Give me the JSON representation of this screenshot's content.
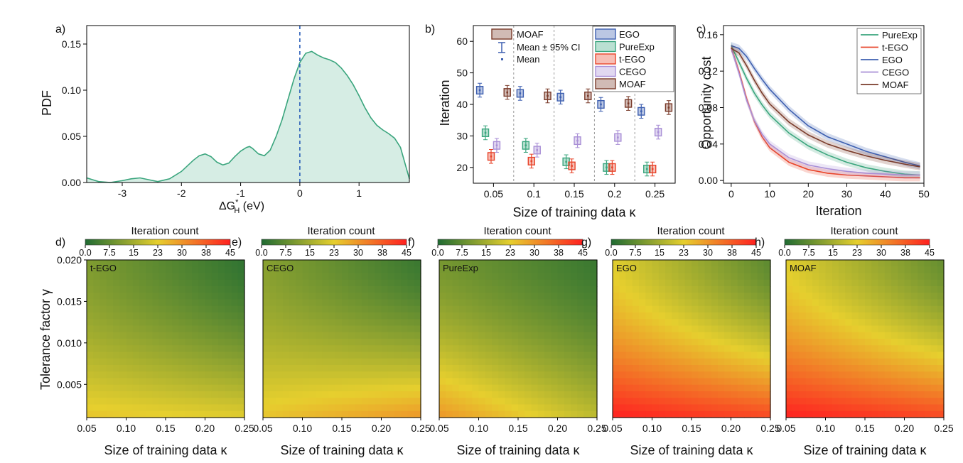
{
  "panels": {
    "a": {
      "letter": "a)",
      "ylabel": "PDF",
      "xlabel_main": "ΔG",
      "xlabel_sup": "*",
      "xlabel_sub": "H",
      "xlabel_unit": " (eV)"
    },
    "b": {
      "letter": "b)",
      "ylabel": "Iteration",
      "xlabel": "Size of training data κ",
      "legend_left": {
        "box": "MOAF",
        "ci": "Mean ± 95% CI",
        "mean": "Mean"
      }
    },
    "c": {
      "letter": "c)",
      "ylabel": "Opportunity cost",
      "xlabel": "Iteration"
    },
    "heat_letters": [
      "d)",
      "e)",
      "f)",
      "g)",
      "h)"
    ],
    "heat_methods": [
      "t-EGO",
      "CEGO",
      "PureExp",
      "EGO",
      "MOAF"
    ],
    "colorbar_title": "Iteration count",
    "colorbar_ticks": [
      "0.0",
      "7.5",
      "15",
      "23",
      "30",
      "38",
      "45"
    ],
    "heat_xlabel": "Size of training data κ",
    "heat_ylabel": "Tolerance factor γ",
    "heat_xticks": [
      "0.05",
      "0.10",
      "0.15",
      "0.20",
      "0.25"
    ],
    "heat_yticks": [
      "0.005",
      "0.010",
      "0.015",
      "0.020"
    ]
  },
  "colors": {
    "pdf_line": "#3aa57d",
    "pdf_fill": "#d6ede4",
    "vline": "#2c5fb8",
    "EGO": "#3d5fb0",
    "PureExp": "#3aa57d",
    "t-EGO": "#e8442a",
    "CEGO": "#a98fd6",
    "MOAF": "#7a3b2a",
    "heat_low": "#1f6b32",
    "heat_mid": "#e6cf2e",
    "heat_high": "#ff2020"
  },
  "chart_data": [
    {
      "type": "area",
      "xlim": [
        -3.6,
        1.85
      ],
      "ylim": [
        0,
        0.17
      ],
      "xticks": [
        -3,
        -2,
        -1,
        0,
        1
      ],
      "yticks": [
        0.0,
        0.05,
        0.1,
        0.15
      ],
      "vline_x": 0,
      "x": [
        -3.6,
        -3.4,
        -3.2,
        -3.0,
        -2.85,
        -2.7,
        -2.55,
        -2.4,
        -2.2,
        -2.0,
        -1.8,
        -1.7,
        -1.6,
        -1.5,
        -1.4,
        -1.3,
        -1.2,
        -1.1,
        -1.0,
        -0.9,
        -0.85,
        -0.8,
        -0.7,
        -0.6,
        -0.5,
        -0.4,
        -0.3,
        -0.2,
        -0.1,
        0.0,
        0.1,
        0.2,
        0.3,
        0.4,
        0.5,
        0.6,
        0.7,
        0.8,
        0.9,
        1.0,
        1.1,
        1.2,
        1.3,
        1.4,
        1.5,
        1.6,
        1.7,
        1.85
      ],
      "y": [
        0.005,
        0.001,
        0.0,
        0.002,
        0.004,
        0.005,
        0.003,
        0.001,
        0.004,
        0.012,
        0.024,
        0.029,
        0.031,
        0.028,
        0.022,
        0.019,
        0.021,
        0.028,
        0.034,
        0.038,
        0.039,
        0.037,
        0.031,
        0.029,
        0.035,
        0.05,
        0.068,
        0.09,
        0.112,
        0.13,
        0.14,
        0.142,
        0.138,
        0.135,
        0.133,
        0.13,
        0.124,
        0.116,
        0.106,
        0.094,
        0.081,
        0.07,
        0.062,
        0.057,
        0.053,
        0.048,
        0.038,
        0.004
      ]
    },
    {
      "type": "box",
      "categories": [
        "0.05",
        "0.1",
        "0.15",
        "0.2",
        "0.25"
      ],
      "ylim": [
        15,
        65
      ],
      "yticks": [
        20,
        30,
        40,
        50,
        60
      ],
      "series": [
        {
          "name": "EGO",
          "means": [
            44.5,
            43.5,
            42.3,
            40.0,
            37.8
          ]
        },
        {
          "name": "PureExp",
          "means": [
            31.0,
            27.0,
            21.8,
            20.0,
            19.5
          ]
        },
        {
          "name": "t-EGO",
          "means": [
            23.5,
            22.0,
            20.5,
            20.0,
            19.5
          ]
        },
        {
          "name": "CEGO",
          "means": [
            27.0,
            25.5,
            28.5,
            29.5,
            31.2
          ]
        },
        {
          "name": "MOAF",
          "means": [
            43.8,
            42.7,
            42.7,
            40.3,
            39.0
          ]
        }
      ]
    },
    {
      "type": "line",
      "xlim": [
        -2,
        50
      ],
      "ylim": [
        -0.003,
        0.17
      ],
      "xticks": [
        0,
        10,
        20,
        30,
        40,
        50
      ],
      "yticks": [
        "0.00",
        "0.04",
        "0.08",
        "0.12",
        "0.16"
      ],
      "x": [
        0,
        2,
        4,
        6,
        8,
        10,
        15,
        20,
        25,
        30,
        35,
        40,
        45,
        49
      ],
      "series": [
        {
          "name": "PureExp",
          "values": [
            0.148,
            0.13,
            0.112,
            0.096,
            0.083,
            0.072,
            0.052,
            0.038,
            0.028,
            0.02,
            0.014,
            0.01,
            0.007,
            0.006
          ]
        },
        {
          "name": "t-EGO",
          "values": [
            0.146,
            0.12,
            0.09,
            0.065,
            0.048,
            0.036,
            0.02,
            0.012,
            0.008,
            0.006,
            0.005,
            0.004,
            0.003,
            0.003
          ]
        },
        {
          "name": "EGO",
          "values": [
            0.148,
            0.145,
            0.136,
            0.123,
            0.111,
            0.1,
            0.078,
            0.06,
            0.048,
            0.04,
            0.032,
            0.026,
            0.02,
            0.016
          ]
        },
        {
          "name": "CEGO",
          "values": [
            0.145,
            0.118,
            0.088,
            0.066,
            0.051,
            0.04,
            0.025,
            0.017,
            0.013,
            0.01,
            0.008,
            0.007,
            0.006,
            0.006
          ]
        },
        {
          "name": "MOAF",
          "values": [
            0.145,
            0.14,
            0.126,
            0.11,
            0.096,
            0.084,
            0.064,
            0.05,
            0.04,
            0.033,
            0.027,
            0.022,
            0.018,
            0.015
          ]
        }
      ]
    },
    {
      "type": "heatmap",
      "xlim": [
        0.05,
        0.25
      ],
      "ylim": [
        0.001,
        0.02
      ],
      "zlim": [
        0,
        45
      ],
      "maps": [
        {
          "name": "t-EGO",
          "corners": {
            "top_left": 11,
            "top_right": 2,
            "bottom_left": 24,
            "bottom_right": 22
          }
        },
        {
          "name": "CEGO",
          "corners": {
            "top_left": 12,
            "top_right": 3,
            "bottom_left": 24,
            "bottom_right": 30
          }
        },
        {
          "name": "PureExp",
          "corners": {
            "top_left": 10,
            "top_right": 3,
            "bottom_left": 30,
            "bottom_right": 18
          }
        },
        {
          "name": "EGO",
          "corners": {
            "top_left": 22,
            "top_right": 7,
            "bottom_left": 45,
            "bottom_right": 40
          }
        },
        {
          "name": "MOAF",
          "corners": {
            "top_left": 22,
            "top_right": 8,
            "bottom_left": 45,
            "bottom_right": 40
          }
        }
      ]
    }
  ]
}
